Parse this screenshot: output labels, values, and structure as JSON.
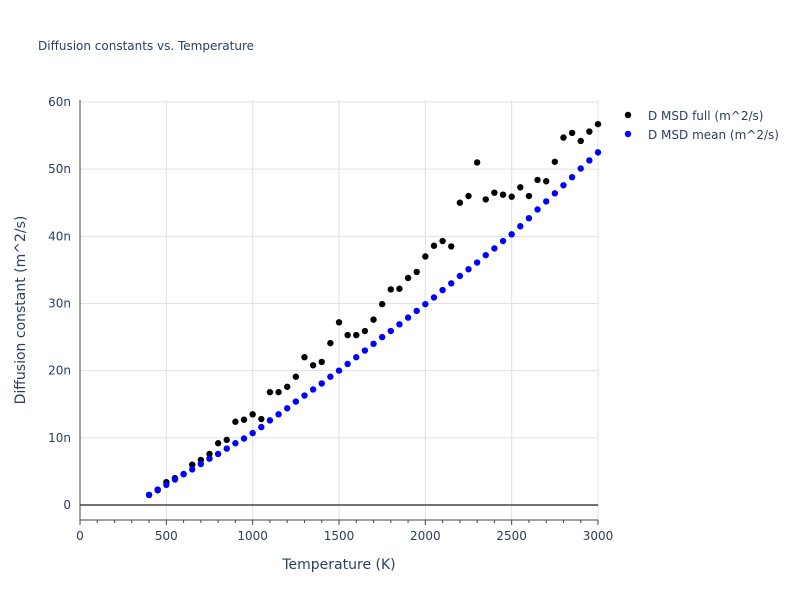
{
  "chart_data": {
    "type": "scatter",
    "title": "Diffusion constants vs. Temperature",
    "xlabel": "Temperature (K)",
    "ylabel": "Diffusion constant (m^2/s)",
    "xlim": [
      0,
      3000
    ],
    "ylim": [
      -2.2,
      60.3
    ],
    "x_ticks": [
      "0",
      "500",
      "1000",
      "1500",
      "2000",
      "2500",
      "3000"
    ],
    "y_ticks": [
      "0",
      "10n",
      "20n",
      "30n",
      "40n",
      "50n",
      "60n"
    ],
    "y_unit_note_scale": "n",
    "grid": true,
    "legend_position": "top-right",
    "x": [
      400,
      450,
      500,
      550,
      600,
      650,
      700,
      750,
      800,
      850,
      900,
      950,
      1000,
      1050,
      1100,
      1150,
      1200,
      1250,
      1300,
      1350,
      1400,
      1450,
      1500,
      1550,
      1600,
      1650,
      1700,
      1750,
      1800,
      1850,
      1900,
      1950,
      2000,
      2050,
      2100,
      2150,
      2200,
      2250,
      2300,
      2350,
      2400,
      2450,
      2500,
      2550,
      2600,
      2650,
      2700,
      2750,
      2800,
      2850,
      2900,
      2950,
      3000
    ],
    "series": [
      {
        "name": "D MSD full (m^2/s)",
        "color": "#000000",
        "values": [
          1.5,
          2.2,
          3.4,
          4.0,
          4.6,
          6.0,
          6.7,
          7.6,
          9.2,
          9.7,
          12.4,
          12.7,
          13.5,
          12.8,
          16.8,
          16.8,
          17.6,
          19.1,
          22.0,
          20.8,
          21.3,
          24.1,
          27.2,
          25.3,
          25.3,
          25.9,
          27.6,
          29.9,
          32.1,
          32.2,
          33.8,
          34.7,
          37.0,
          38.6,
          39.3,
          38.5,
          45.0,
          46.0,
          51.0,
          45.5,
          46.5,
          46.2,
          45.9,
          47.3,
          46.0,
          48.4,
          48.2,
          51.1,
          54.7,
          55.4,
          54.2,
          55.6,
          56.7
        ]
      },
      {
        "name": "D MSD mean (m^2/s)",
        "color": "#0000ff",
        "values": [
          1.5,
          2.3,
          3.0,
          3.8,
          4.6,
          5.3,
          6.1,
          6.9,
          7.6,
          8.4,
          9.2,
          9.9,
          10.7,
          11.6,
          12.6,
          13.5,
          14.4,
          15.4,
          16.3,
          17.2,
          18.1,
          19.1,
          20.0,
          21.0,
          22.0,
          23.0,
          24.0,
          25.0,
          25.9,
          26.9,
          27.9,
          28.9,
          29.9,
          30.9,
          32.0,
          33.0,
          34.1,
          35.1,
          36.1,
          37.2,
          38.2,
          39.3,
          40.3,
          41.5,
          42.7,
          44.0,
          45.2,
          46.4,
          47.6,
          48.8,
          50.1,
          51.3,
          52.5
        ]
      }
    ]
  }
}
